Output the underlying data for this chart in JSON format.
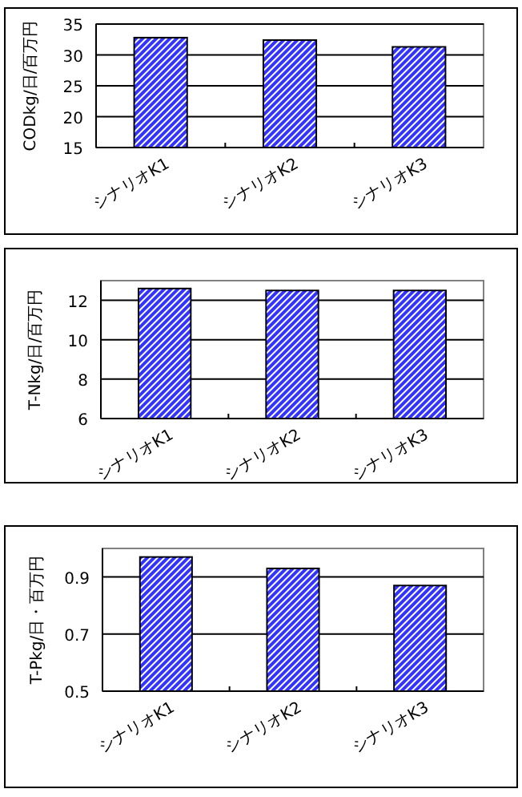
{
  "chart_data": [
    {
      "type": "bar",
      "ylabel": "CODkg/日/百万円",
      "categories": [
        "シナリオK1",
        "シナリオK2",
        "シナリオK3"
      ],
      "values": [
        32.8,
        32.4,
        31.3
      ],
      "color": "#3333ff",
      "ylim": [
        15,
        35
      ],
      "yticks": [
        15,
        20,
        25,
        30,
        35
      ],
      "grid": "y"
    },
    {
      "type": "bar",
      "ylabel": "T-Nkg/日/百万円",
      "categories": [
        "シナリオK1",
        "シナリオK2",
        "シナリオK3"
      ],
      "values": [
        12.6,
        12.5,
        12.5
      ],
      "color": "#3333ff",
      "ylim": [
        6,
        13
      ],
      "yticks": [
        6,
        8,
        10,
        12
      ],
      "grid": "y"
    },
    {
      "type": "bar",
      "ylabel": "T-Pkg/日・百万円",
      "categories": [
        "シナリオK1",
        "シナリオK2",
        "シナリオK3"
      ],
      "values": [
        0.97,
        0.93,
        0.87
      ],
      "color": "#3333ff",
      "ylim": [
        0.5,
        1.0
      ],
      "yticks": [
        0.5,
        0.7,
        0.9
      ],
      "grid": "y"
    }
  ]
}
